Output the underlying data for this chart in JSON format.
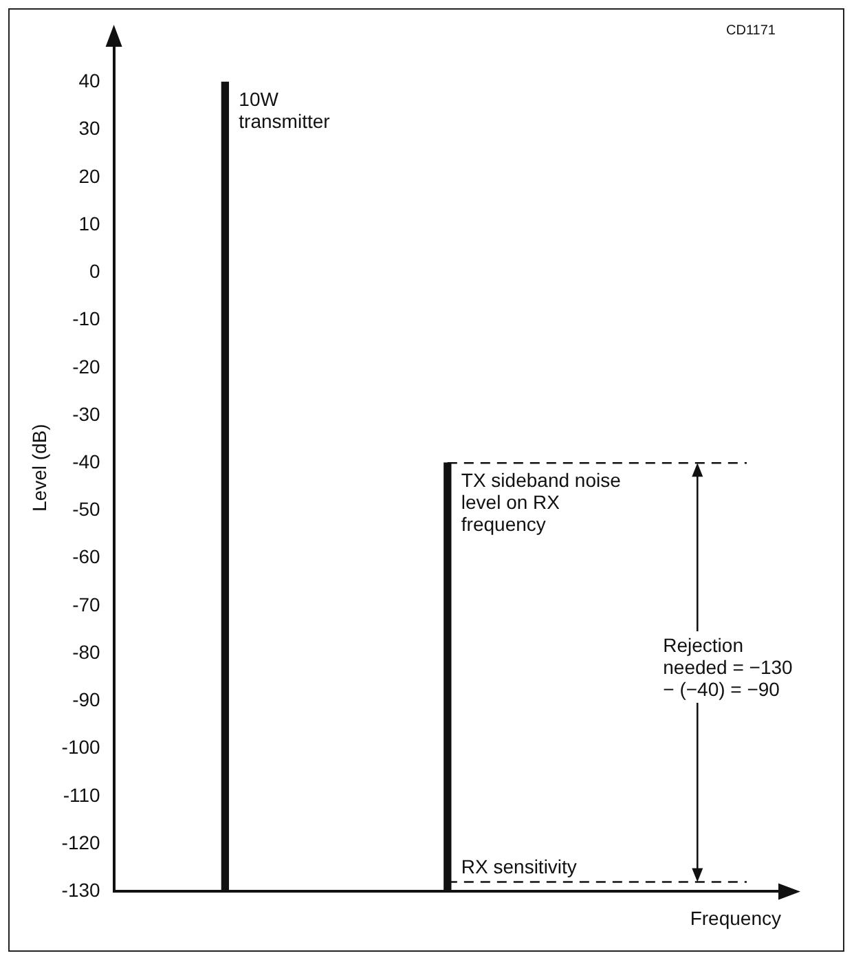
{
  "chart_data": {
    "type": "bar",
    "ylabel": "Level (dB)",
    "xlabel": "Frequency",
    "categories": [
      null,
      null,
      null
    ],
    "values": [
      170,
      90,
      null
    ],
    "base": [
      -130,
      -130,
      null
    ],
    "color": "#111111",
    "ylim": [
      -130,
      48
    ],
    "yticks": [
      40,
      30,
      20,
      10,
      0,
      -10,
      -20,
      -30,
      -40,
      -50,
      -60,
      -70,
      -80,
      -90,
      -100,
      -110,
      -120,
      -130
    ],
    "grid": false,
    "legend": false,
    "tick_labels": "y",
    "ref_lines": [
      {
        "axis": "y",
        "value": -40,
        "line_style": "dashed"
      },
      {
        "axis": "y",
        "value": -128,
        "label": "RX sensitivity",
        "line_style": "dashed"
      }
    ],
    "annotations": [
      "CD1171",
      "10W transmitter",
      "TX sideband noise level on RX frequency",
      "Rejection needed = −130 − (−40) = −90"
    ]
  }
}
